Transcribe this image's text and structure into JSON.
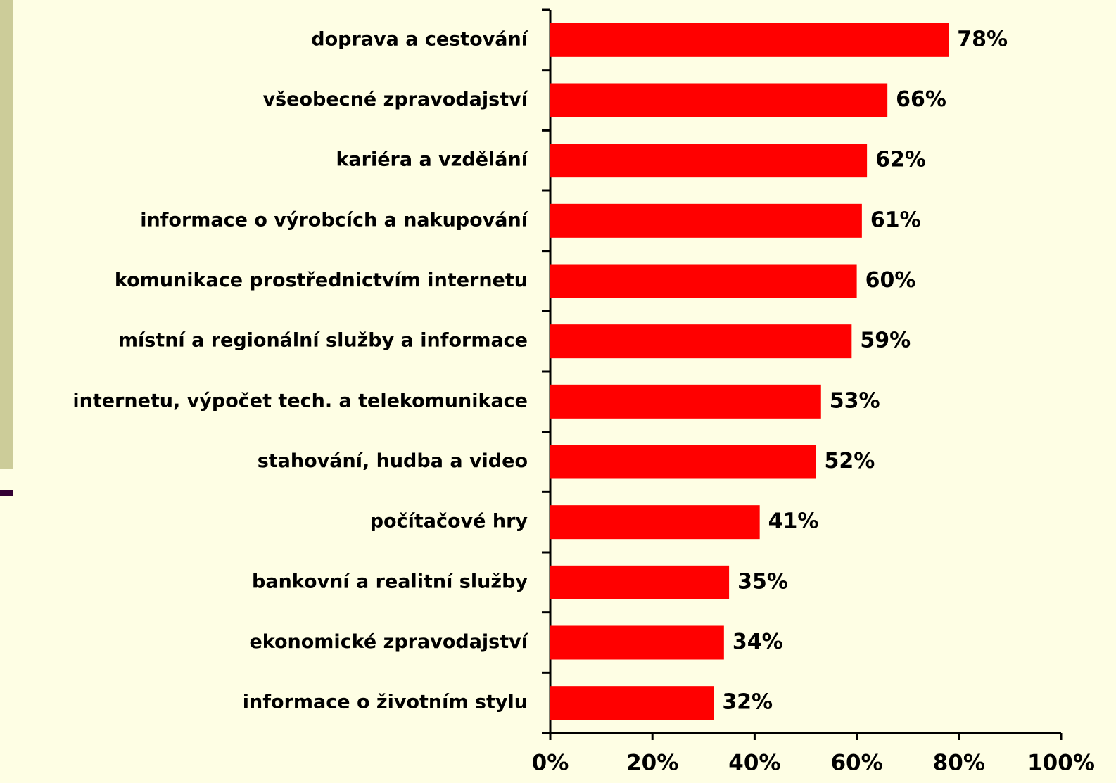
{
  "chart_data": {
    "type": "bar",
    "orientation": "horizontal",
    "categories": [
      "doprava a cestování",
      "všeobecné zpravodajství",
      "kariéra a vzdělání",
      "informace o výrobcích a nakupování",
      "komunikace prostřednictvím internetu",
      "místní a regionální služby a informace",
      "internetu, výpočet tech. a telekomunikace",
      "stahování, hudba a video",
      "počítačové hry",
      "bankovní a realitní služby",
      "ekonomické zpravodajství",
      "informace o životním stylu"
    ],
    "values": [
      78,
      66,
      62,
      61,
      60,
      59,
      53,
      52,
      41,
      35,
      34,
      32
    ],
    "value_labels": [
      "78%",
      "66%",
      "62%",
      "61%",
      "60%",
      "59%",
      "53%",
      "52%",
      "41%",
      "35%",
      "34%",
      "32%"
    ],
    "color": "#ff0000",
    "xlim": [
      0,
      100
    ],
    "xticks": [
      {
        "value": 0,
        "label": "0%"
      },
      {
        "value": 20,
        "label": "20%"
      },
      {
        "value": 40,
        "label": "40%"
      },
      {
        "value": 60,
        "label": "60%"
      },
      {
        "value": 80,
        "label": "80%"
      },
      {
        "value": 100,
        "label": "100%"
      }
    ],
    "grid": false
  }
}
